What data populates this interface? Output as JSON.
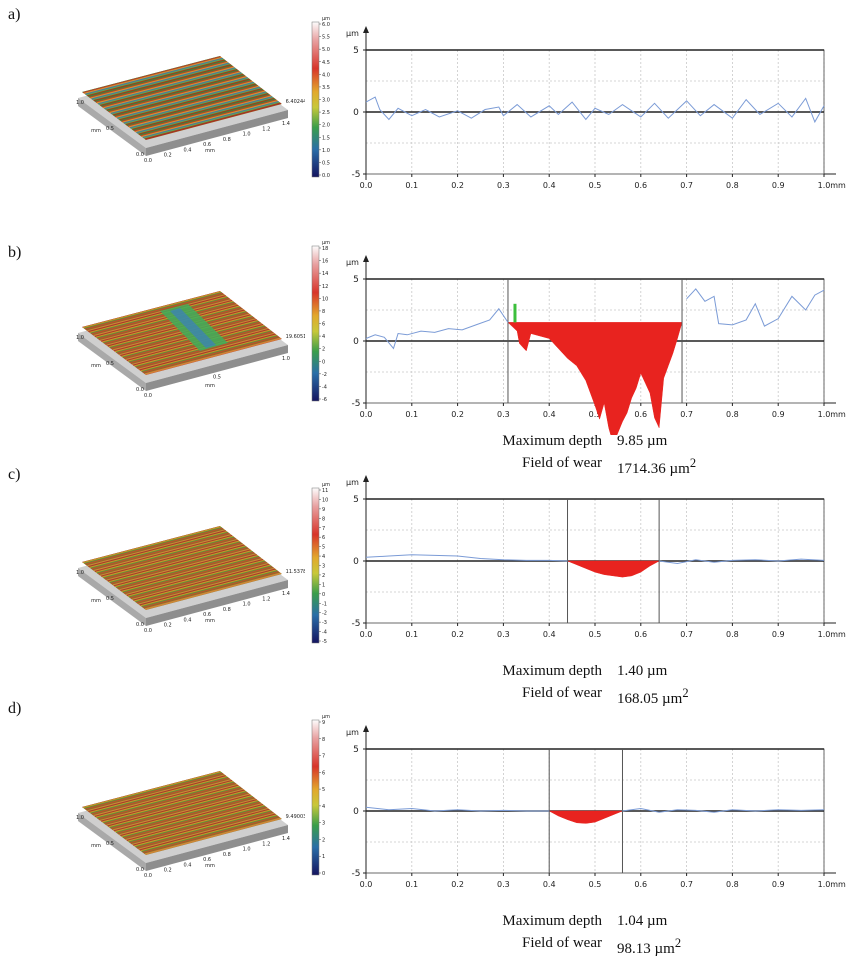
{
  "panels": [
    {
      "label": "a)",
      "surface": {
        "value_label": "6.40244",
        "axis_unit": "mm",
        "x_ticks": [
          "0.0",
          "0.2",
          "0.4",
          "0.6",
          "0.8",
          "1.0",
          "1.2",
          "1.4"
        ],
        "y_ticks": [
          "0.0",
          "0.5",
          "1.0"
        ],
        "pattern": "stripes"
      },
      "colorbar": {
        "unit": "µm",
        "ticks": [
          "6.0",
          "5.5",
          "5.0",
          "4.5",
          "4.0",
          "3.5",
          "3.0",
          "2.5",
          "2.0",
          "1.5",
          "1.0",
          "0.5",
          "0.0"
        ]
      },
      "stats": null
    },
    {
      "label": "b)",
      "surface": {
        "value_label": "19.6051",
        "axis_unit": "mm",
        "x_ticks": [
          "0.0",
          "0.5",
          "1.0"
        ],
        "y_ticks": [
          "0.0",
          "0.5",
          "1.0"
        ],
        "pattern": "groove"
      },
      "colorbar": {
        "unit": "µm",
        "ticks": [
          "18",
          "16",
          "14",
          "12",
          "10",
          "8",
          "6",
          "4",
          "2",
          "0",
          "-2",
          "-4",
          "-6"
        ]
      },
      "stats": {
        "depth_label": "Maximum depth",
        "depth_value": "9.85 µm",
        "area_label": "Field of wear",
        "area_value": "1714.36 µm",
        "area_exp": "2"
      }
    },
    {
      "label": "c)",
      "surface": {
        "value_label": "11.5378",
        "axis_unit": "mm",
        "x_ticks": [
          "0.0",
          "0.2",
          "0.4",
          "0.6",
          "0.8",
          "1.0",
          "1.2",
          "1.4"
        ],
        "y_ticks": [
          "0.0",
          "0.5",
          "1.0"
        ],
        "pattern": "rough"
      },
      "colorbar": {
        "unit": "µm",
        "ticks": [
          "11",
          "10",
          "9",
          "8",
          "7",
          "6",
          "5",
          "4",
          "3",
          "2",
          "1",
          "0",
          "-1",
          "-2",
          "-3",
          "-4",
          "-5"
        ]
      },
      "stats": {
        "depth_label": "Maximum depth",
        "depth_value": "1.40 µm",
        "area_label": "Field of wear",
        "area_value": "168.05 µm",
        "area_exp": "2"
      }
    },
    {
      "label": "d)",
      "surface": {
        "value_label": "9.49003",
        "axis_unit": "mm",
        "x_ticks": [
          "0.0",
          "0.2",
          "0.4",
          "0.6",
          "0.8",
          "1.0",
          "1.2",
          "1.4"
        ],
        "y_ticks": [
          "0.0",
          "0.5",
          "1.0"
        ],
        "pattern": "rough"
      },
      "colorbar": {
        "unit": "µm",
        "ticks": [
          "9",
          "8",
          "7",
          "6",
          "5",
          "4",
          "3",
          "2",
          "1",
          "0"
        ]
      },
      "stats": {
        "depth_label": "Maximum depth",
        "depth_value": "1.04 µm",
        "area_label": "Field of wear",
        "area_value": "98.13 µm",
        "area_exp": "2"
      }
    }
  ],
  "chart_data": [
    {
      "type": "line",
      "x_unit": "mm",
      "y_unit": "µm",
      "xlim": [
        0,
        1
      ],
      "ylim": [
        -5,
        5
      ],
      "x_ticks": [
        "0.0",
        "0.1",
        "0.2",
        "0.3",
        "0.4",
        "0.5",
        "0.6",
        "0.7",
        "0.8",
        "0.9",
        "1.0"
      ],
      "y_ticks": [
        "5",
        "0",
        "-5"
      ],
      "grid": true,
      "series": [
        {
          "color": "#7b9bd6",
          "x": [
            0,
            0.02,
            0.03,
            0.05,
            0.07,
            0.1,
            0.13,
            0.16,
            0.2,
            0.23,
            0.26,
            0.29,
            0.3,
            0.33,
            0.36,
            0.4,
            0.42,
            0.45,
            0.48,
            0.5,
            0.53,
            0.56,
            0.6,
            0.63,
            0.66,
            0.7,
            0.73,
            0.76,
            0.8,
            0.83,
            0.86,
            0.9,
            0.93,
            0.96,
            0.98,
            1.0
          ],
          "y": [
            0.8,
            1.2,
            0.2,
            -0.6,
            0.3,
            -0.3,
            0.2,
            -0.4,
            0.1,
            -0.5,
            0.2,
            0.4,
            -0.3,
            0.6,
            -0.4,
            0.5,
            -0.2,
            0.8,
            -0.6,
            0.3,
            -0.2,
            0.6,
            -0.4,
            0.7,
            -0.5,
            0.9,
            -0.3,
            0.6,
            -0.5,
            1.0,
            -0.2,
            0.7,
            -0.4,
            1.1,
            -0.8,
            0.5
          ]
        }
      ],
      "markers": []
    },
    {
      "type": "line",
      "x_unit": "mm",
      "y_unit": "µm",
      "xlim": [
        0,
        1
      ],
      "ylim": [
        -5,
        5
      ],
      "x_ticks": [
        "0.0",
        "0.1",
        "0.2",
        "0.3",
        "0.4",
        "0.5",
        "0.6",
        "0.7",
        "0.8",
        "0.9",
        "1.0"
      ],
      "y_ticks": [
        "5",
        "0",
        "-5"
      ],
      "grid": true,
      "series": [
        {
          "color": "#7b9bd6",
          "x": [
            0,
            0.02,
            0.04,
            0.06,
            0.07,
            0.09,
            0.12,
            0.15,
            0.18,
            0.21,
            0.24,
            0.27,
            0.29,
            0.31,
            0.7,
            0.72,
            0.74,
            0.76,
            0.77,
            0.8,
            0.83,
            0.85,
            0.87,
            0.9,
            0.93,
            0.96,
            0.98,
            1.0
          ],
          "y": [
            0.2,
            0.5,
            0.3,
            -0.6,
            0.6,
            0.5,
            0.8,
            0.7,
            1.0,
            0.9,
            1.3,
            1.7,
            2.6,
            1.5,
            3.4,
            4.2,
            3.2,
            3.6,
            1.4,
            1.3,
            1.7,
            3.0,
            1.2,
            1.8,
            3.6,
            2.5,
            3.7,
            4.1
          ]
        }
      ],
      "wear_fill": {
        "color": "#e8231f",
        "x_start": 0.31,
        "x_end": 0.69,
        "ref": 1.5,
        "x": [
          0.31,
          0.33,
          0.335,
          0.35,
          0.36,
          0.38,
          0.4,
          0.42,
          0.44,
          0.46,
          0.48,
          0.5,
          0.51,
          0.52,
          0.53,
          0.54,
          0.55,
          0.56,
          0.57,
          0.58,
          0.59,
          0.6,
          0.61,
          0.62,
          0.63,
          0.64,
          0.65,
          0.66,
          0.67,
          0.68,
          0.69
        ],
        "y": [
          1.5,
          0.8,
          -0.2,
          -0.8,
          0.6,
          0.4,
          0.2,
          -0.6,
          -1.4,
          -2.0,
          -3.2,
          -5.2,
          -6.3,
          -5.0,
          -7.0,
          -8.3,
          -7.4,
          -6.5,
          -5.8,
          -4.6,
          -3.8,
          -2.6,
          -3.4,
          -4.2,
          -6.2,
          -7.0,
          -3.0,
          -2.0,
          -1.0,
          0.2,
          1.5
        ]
      },
      "markers": [
        0.31,
        0.69
      ]
    },
    {
      "type": "line",
      "x_unit": "mm",
      "y_unit": "µm",
      "xlim": [
        0,
        1
      ],
      "ylim": [
        -5,
        5
      ],
      "x_ticks": [
        "0.0",
        "0.1",
        "0.2",
        "0.3",
        "0.4",
        "0.5",
        "0.6",
        "0.7",
        "0.8",
        "0.9",
        "1.0"
      ],
      "y_ticks": [
        "5",
        "0",
        "-5"
      ],
      "grid": true,
      "series": [
        {
          "color": "#7b9bd6",
          "x": [
            0,
            0.05,
            0.1,
            0.15,
            0.2,
            0.25,
            0.3,
            0.35,
            0.4,
            0.44,
            0.64,
            0.68,
            0.72,
            0.76,
            0.8,
            0.85,
            0.9,
            0.95,
            1.0
          ],
          "y": [
            0.3,
            0.4,
            0.5,
            0.45,
            0.4,
            0.2,
            0.1,
            0.05,
            0.05,
            0.0,
            0.0,
            -0.2,
            0.1,
            -0.1,
            0.05,
            0.1,
            0.0,
            0.15,
            0.05
          ]
        }
      ],
      "wear_fill": {
        "color": "#e8231f",
        "x_start": 0.44,
        "x_end": 0.64,
        "ref": 0,
        "x": [
          0.44,
          0.46,
          0.48,
          0.5,
          0.52,
          0.54,
          0.56,
          0.58,
          0.6,
          0.62,
          0.64
        ],
        "y": [
          0,
          -0.3,
          -0.6,
          -0.9,
          -1.1,
          -1.2,
          -1.3,
          -1.2,
          -0.9,
          -0.4,
          0
        ]
      },
      "markers": [
        0.44,
        0.64
      ]
    },
    {
      "type": "line",
      "x_unit": "mm",
      "y_unit": "µm",
      "xlim": [
        0,
        1
      ],
      "ylim": [
        -5,
        5
      ],
      "x_ticks": [
        "0.0",
        "0.1",
        "0.2",
        "0.3",
        "0.4",
        "0.5",
        "0.6",
        "0.7",
        "0.8",
        "0.9",
        "1.0"
      ],
      "y_ticks": [
        "5",
        "0",
        "-5"
      ],
      "grid": true,
      "series": [
        {
          "color": "#7b9bd6",
          "x": [
            0,
            0.05,
            0.1,
            0.15,
            0.2,
            0.25,
            0.3,
            0.35,
            0.4,
            0.56,
            0.6,
            0.64,
            0.68,
            0.72,
            0.76,
            0.8,
            0.85,
            0.9,
            0.95,
            1.0
          ],
          "y": [
            0.3,
            0.1,
            0.2,
            0.0,
            0.1,
            0.0,
            0.05,
            0.0,
            0.0,
            0.0,
            0.2,
            -0.1,
            0.1,
            0.05,
            -0.1,
            0.1,
            0.0,
            0.1,
            0.05,
            0.1
          ]
        }
      ],
      "wear_fill": {
        "color": "#e8231f",
        "x_start": 0.4,
        "x_end": 0.56,
        "ref": 0,
        "x": [
          0.4,
          0.42,
          0.44,
          0.46,
          0.48,
          0.5,
          0.52,
          0.54,
          0.56
        ],
        "y": [
          0,
          -0.4,
          -0.7,
          -0.95,
          -1.0,
          -0.9,
          -0.6,
          -0.3,
          0
        ]
      },
      "markers": [
        0.4,
        0.56
      ]
    }
  ]
}
